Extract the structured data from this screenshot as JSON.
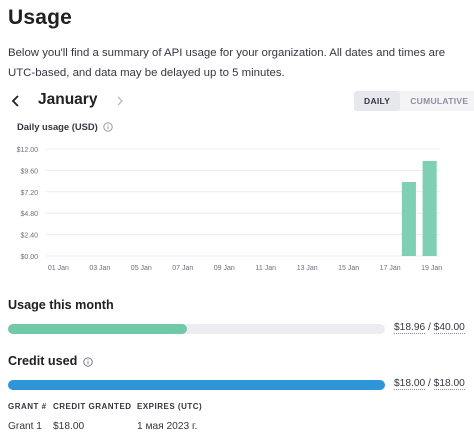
{
  "page": {
    "title": "Usage",
    "intro": "Below you'll find a summary of API usage for your organization. All dates and times are UTC-based, and data may be delayed up to 5 minutes."
  },
  "month_nav": {
    "prev_icon": "chevron-left-icon",
    "month": "January",
    "next_icon": "chevron-right-icon"
  },
  "view_toggle": {
    "options": [
      "DAILY",
      "CUMULATIVE"
    ],
    "selected": "DAILY"
  },
  "chart_data": {
    "type": "bar",
    "title": "Daily usage (USD)",
    "xlabel": "",
    "ylabel": "",
    "ylim": [
      0,
      12
    ],
    "y_ticks": [
      "$0.00",
      "$2.40",
      "$4.80",
      "$7.20",
      "$9.60",
      "$12.00"
    ],
    "y_tick_values": [
      0,
      2.4,
      4.8,
      7.2,
      9.6,
      12
    ],
    "x_tick_labels": [
      "01 Jan",
      "03 Jan",
      "05 Jan",
      "07 Jan",
      "09 Jan",
      "11 Jan",
      "13 Jan",
      "15 Jan",
      "17 Jan",
      "19 Jan"
    ],
    "categories": [
      "01 Jan",
      "02 Jan",
      "03 Jan",
      "04 Jan",
      "05 Jan",
      "06 Jan",
      "07 Jan",
      "08 Jan",
      "09 Jan",
      "10 Jan",
      "11 Jan",
      "12 Jan",
      "13 Jan",
      "14 Jan",
      "15 Jan",
      "16 Jan",
      "17 Jan",
      "18 Jan",
      "19 Jan"
    ],
    "values": [
      0,
      0,
      0,
      0,
      0,
      0,
      0,
      0,
      0,
      0,
      0,
      0,
      0,
      0,
      0,
      0,
      0,
      8.3,
      10.66
    ],
    "bar_color": "#7fcfb5",
    "grid": true
  },
  "usage_month": {
    "title": "Usage this month",
    "used": "$18.96",
    "separator": " / ",
    "limit": "$40.00",
    "fraction": 0.474,
    "color": "#71c9a8"
  },
  "credit": {
    "title": "Credit used",
    "info_icon": "info-icon",
    "used": "$18.00",
    "separator": " / ",
    "total": "$18.00",
    "fraction": 1.0,
    "color": "#2d96d8"
  },
  "grants": {
    "headers": [
      "GRANT #",
      "CREDIT GRANTED",
      "EXPIRES (UTC)"
    ],
    "rows": [
      [
        "Grant 1",
        "$18.00",
        "1 мая 2023 г."
      ]
    ]
  }
}
